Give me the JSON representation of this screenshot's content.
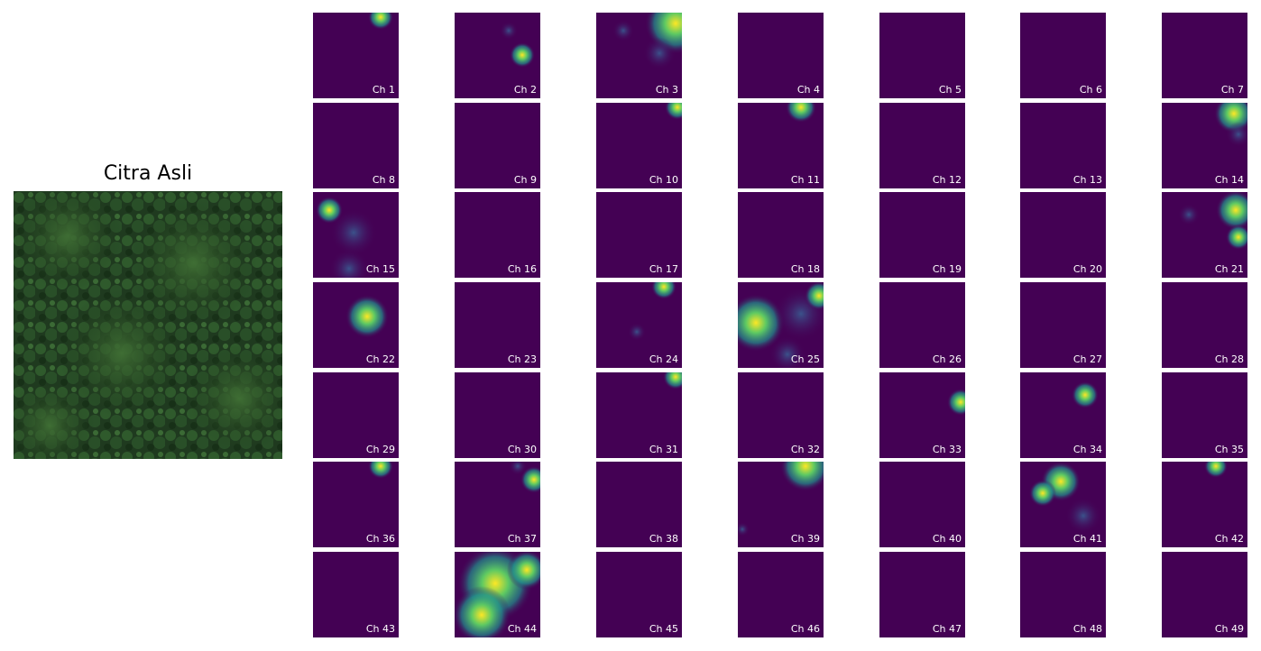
{
  "figure": {
    "title": "Citra Asli",
    "tiles": [
      "Ch 1",
      "Ch 2",
      "Ch 3",
      "Ch 4",
      "Ch 5",
      "Ch 6",
      "Ch 7",
      "Ch 8",
      "Ch 9",
      "Ch 10",
      "Ch 11",
      "Ch 12",
      "Ch 13",
      "Ch 14",
      "Ch 15",
      "Ch 16",
      "Ch 17",
      "Ch 18",
      "Ch 19",
      "Ch 20",
      "Ch 21",
      "Ch 22",
      "Ch 23",
      "Ch 24",
      "Ch 25",
      "Ch 26",
      "Ch 27",
      "Ch 28",
      "Ch 29",
      "Ch 30",
      "Ch 31",
      "Ch 32",
      "Ch 33",
      "Ch 34",
      "Ch 35",
      "Ch 36",
      "Ch 37",
      "Ch 38",
      "Ch 39",
      "Ch 40",
      "Ch 41",
      "Ch 42",
      "Ch 43",
      "Ch 44",
      "Ch 45",
      "Ch 46",
      "Ch 47",
      "Ch 48",
      "Ch 49"
    ]
  }
}
